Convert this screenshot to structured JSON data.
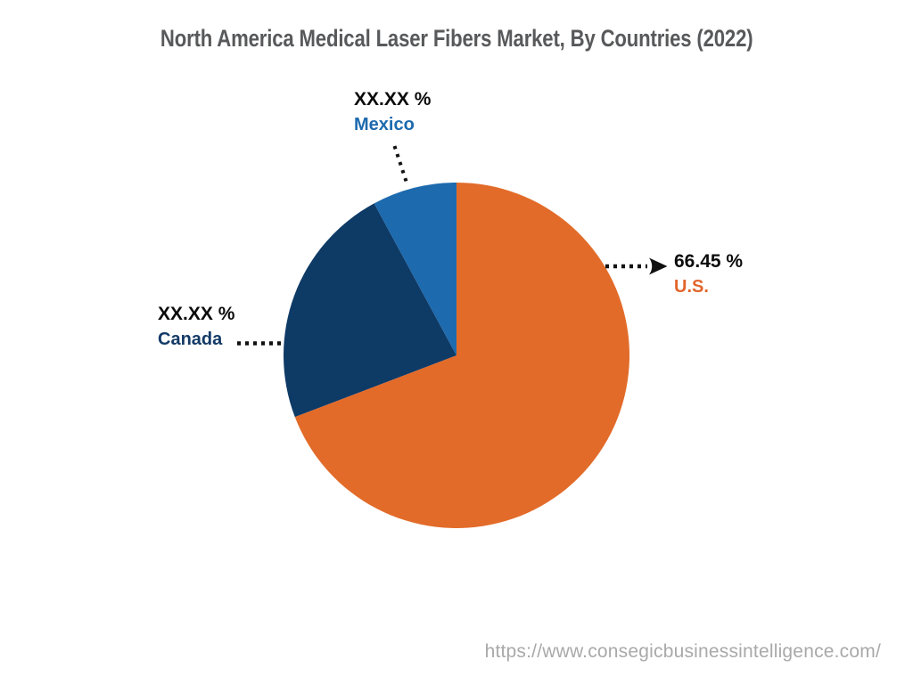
{
  "title": "North America Medical Laser Fibers Market, By Countries (2022)",
  "watermark": "https://www.consegicbusinessintelligence.com/",
  "colors": {
    "background": "#FFFFFF",
    "title_text": "#58595B",
    "value_text": "#0B0B0B",
    "pointer": "#111111",
    "watermark_text": "#A9A9A9"
  },
  "chart_data": {
    "type": "pie",
    "title": "North America Medical Laser Fibers Market, By Countries (2022)",
    "unit": "%",
    "start_angle_deg": 0,
    "direction": "clockwise",
    "legend": "none",
    "annotations": "each slice labeled with dotted leader line; U.S. leader ends in arrowhead",
    "slices": [
      {
        "name": "U.S.",
        "value": 66.45,
        "value_label": "66.45 %",
        "drawn_percent": 69.2,
        "color": "#E26B29",
        "label_color": "#E2662C"
      },
      {
        "name": "Canada",
        "value_label": "XX.XX %",
        "drawn_percent": 22.9,
        "color": "#0E3A66",
        "label_color": "#133A66"
      },
      {
        "name": "Mexico",
        "value_label": "XX.XX %",
        "drawn_percent": 7.9,
        "color": "#1D6AAE",
        "label_color": "#1D6AAE"
      }
    ]
  }
}
